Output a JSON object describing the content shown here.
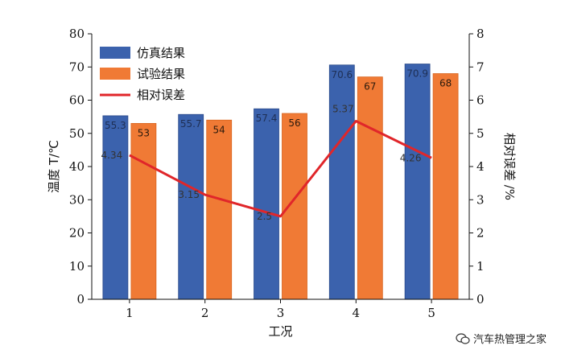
{
  "chart_data": {
    "type": "bar",
    "categories": [
      "1",
      "2",
      "3",
      "4",
      "5"
    ],
    "xlabel": "工况",
    "ylabel": "温度 T/℃",
    "y2label": "相对误差 /%",
    "ylim": [
      0,
      80
    ],
    "y2lim": [
      0,
      8
    ],
    "yticks": [
      "0",
      "10",
      "20",
      "30",
      "40",
      "50",
      "60",
      "70",
      "80"
    ],
    "y2ticks": [
      "0",
      "1",
      "2",
      "3",
      "4",
      "5",
      "6",
      "7",
      "8"
    ],
    "grid": false,
    "legend_position": "top-left",
    "series": [
      {
        "name": "仿真结果",
        "kind": "bar",
        "axis": "left",
        "color": "#3b62ad",
        "values": [
          55.3,
          55.7,
          57.4,
          70.6,
          70.9
        ],
        "labels": [
          "55.3",
          "55.7",
          "57.4",
          "70.6",
          "70.9"
        ]
      },
      {
        "name": "试验结果",
        "kind": "bar",
        "axis": "left",
        "color": "#f07a35",
        "values": [
          53,
          54,
          56,
          67,
          68
        ],
        "labels": [
          "53",
          "54",
          "56",
          "67",
          "68"
        ]
      },
      {
        "name": "相对误差",
        "kind": "line",
        "axis": "right",
        "color": "#e0262a",
        "values": [
          4.34,
          3.15,
          2.5,
          5.37,
          4.26
        ],
        "labels": [
          "4.34",
          "3.15",
          "2.5",
          "5.37",
          "4.26"
        ]
      }
    ]
  },
  "watermark": {
    "text": "汽车热管理之家",
    "icon": "wechat-icon"
  }
}
